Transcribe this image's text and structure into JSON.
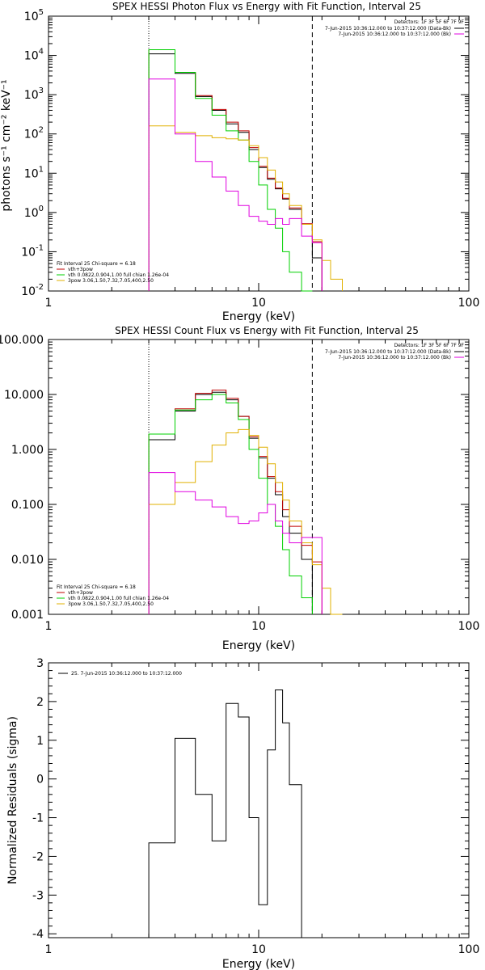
{
  "colors": {
    "black": "#000000",
    "red": "#c00000",
    "green": "#00d000",
    "magenta": "#e000e0",
    "yellow": "#e0b000"
  },
  "chart_data": [
    {
      "type": "line",
      "title": "SPEX HESSI Photon Flux vs Energy with Fit Function, Interval 25",
      "xlabel": "Energy (keV)",
      "ylabel": "photons s⁻¹ cm⁻² keV⁻¹",
      "xscale": "log",
      "yscale": "log",
      "xlim": [
        1,
        100
      ],
      "ylim": [
        0.01,
        100000
      ],
      "xticks": [
        {
          "v": 1,
          "label": "1"
        },
        {
          "v": 10,
          "label": "10"
        },
        {
          "v": 100,
          "label": "100"
        }
      ],
      "yticks": [
        {
          "v": 0.01,
          "base": "10",
          "exp": "-2"
        },
        {
          "v": 0.1,
          "base": "10",
          "exp": "-1"
        },
        {
          "v": 1,
          "base": "10",
          "exp": "0"
        },
        {
          "v": 10,
          "base": "10",
          "exp": "1"
        },
        {
          "v": 100,
          "base": "10",
          "exp": "2"
        },
        {
          "v": 1000,
          "base": "10",
          "exp": "3"
        },
        {
          "v": 10000,
          "base": "10",
          "exp": "4"
        },
        {
          "v": 100000,
          "base": "10",
          "exp": "5"
        }
      ],
      "vlines": [
        {
          "x": 3,
          "style": "dotted"
        },
        {
          "x": 18,
          "style": "dashed"
        }
      ],
      "legend_top": {
        "header": "Detectors: 1F 3F 5F 6F 7F 9F",
        "lines": [
          {
            "text": "7-Jun-2015 10:36:12.000 to 10:37:12.000 (Data-Bk)",
            "color": "#000000"
          },
          {
            "text": "7-Jun-2015 10:36:12.000 to 10:37:12.000 (Bk)",
            "color": "#e000e0"
          }
        ]
      },
      "legend_bottom": {
        "header": "Fit Interval 25   Chi-square = 6.18",
        "lines": [
          {
            "text": "vth+3pow",
            "color": "#c00000"
          },
          {
            "text": "vth 0.0822,0.904,1.00  full chian 1.26e-04",
            "color": "#00d000"
          },
          {
            "text": "3pow 3.06,1.50,7.32,7.05,400,2.50",
            "color": "#e0b000"
          }
        ]
      },
      "edges": [
        3,
        4,
        5,
        6,
        7,
        8,
        9,
        10,
        11,
        12,
        13,
        14,
        16,
        18,
        20,
        22,
        25
      ],
      "series": [
        {
          "name": "Data-Bk",
          "color": "#000000",
          "values": [
            11000,
            3500,
            900,
            400,
            180,
            110,
            40,
            14,
            7,
            4,
            2.2,
            1.2,
            0.5,
            0.07,
            null,
            null
          ]
        },
        {
          "name": "vth+3pow",
          "color": "#c00000",
          "values": [
            14000,
            3700,
            950,
            420,
            200,
            120,
            45,
            15,
            7.5,
            4.2,
            2.3,
            1.3,
            0.52,
            0.18,
            null,
            null
          ]
        },
        {
          "name": "vth",
          "color": "#00d000",
          "values": [
            14000,
            3700,
            800,
            300,
            120,
            70,
            20,
            5,
            1.2,
            0.4,
            0.1,
            0.03,
            0.01,
            null,
            null,
            null
          ]
        },
        {
          "name": "3pow",
          "color": "#e0b000",
          "values": [
            160,
            110,
            90,
            80,
            75,
            70,
            50,
            25,
            12,
            6,
            3,
            1.5,
            0.5,
            0.2,
            0.06,
            0.02
          ]
        },
        {
          "name": "Bk",
          "color": "#e000e0",
          "values": [
            2500,
            100,
            20,
            8,
            3.5,
            1.5,
            0.8,
            0.6,
            0.5,
            0.7,
            0.5,
            0.7,
            0.25,
            0.17,
            null,
            null
          ]
        }
      ]
    },
    {
      "type": "line",
      "title": "SPEX HESSI Count Flux vs Energy with Fit Function, Interval 25",
      "xlabel": "Energy (keV)",
      "ylabel": "",
      "xscale": "log",
      "yscale": "log",
      "xlim": [
        1,
        100
      ],
      "ylim": [
        0.001,
        100
      ],
      "xticks": [
        {
          "v": 1,
          "label": "1"
        },
        {
          "v": 10,
          "label": "10"
        },
        {
          "v": 100,
          "label": "100"
        }
      ],
      "yticks": [
        {
          "v": 0.001,
          "label": "0.001"
        },
        {
          "v": 0.01,
          "label": "0.010"
        },
        {
          "v": 0.1,
          "label": "0.100"
        },
        {
          "v": 1,
          "label": "1.000"
        },
        {
          "v": 10,
          "label": "10.000"
        },
        {
          "v": 100,
          "label": "100.000"
        }
      ],
      "vlines": [
        {
          "x": 3,
          "style": "dotted"
        },
        {
          "x": 18,
          "style": "dashed"
        }
      ],
      "legend_top": {
        "header": "Detectors: 1F 3F 5F 6F 7F 9F",
        "lines": [
          {
            "text": "7-Jun-2015 10:36:12.000 to 10:37:12.000 (Data-Bk)",
            "color": "#000000"
          },
          {
            "text": "7-Jun-2015 10:36:12.000 to 10:37:12.000 (Bk)",
            "color": "#e000e0"
          }
        ]
      },
      "legend_bottom": {
        "header": "Fit Interval 25   Chi-square = 6.18",
        "lines": [
          {
            "text": "vth+3pow",
            "color": "#c00000"
          },
          {
            "text": "vth 0.0822,0.904,1.00  full chian 1.26e-04",
            "color": "#00d000"
          },
          {
            "text": "3pow 3.06,1.50,7.32,7.05,400,2.50",
            "color": "#e0b000"
          }
        ]
      },
      "edges": [
        3,
        4,
        5,
        6,
        7,
        8,
        9,
        10,
        11,
        12,
        13,
        14,
        16,
        18,
        20,
        22,
        25
      ],
      "series": [
        {
          "name": "Data-Bk",
          "color": "#000000",
          "values": [
            1.5,
            5,
            10,
            11,
            8,
            4,
            1.6,
            0.7,
            0.3,
            0.15,
            0.06,
            0.03,
            0.01,
            0.001,
            null,
            null
          ]
        },
        {
          "name": "vth+3pow",
          "color": "#c00000",
          "values": [
            1.9,
            5.5,
            10.5,
            12,
            8.5,
            4,
            1.7,
            0.75,
            0.32,
            0.17,
            0.08,
            0.04,
            0.018,
            0.009,
            null,
            null
          ]
        },
        {
          "name": "vth",
          "color": "#00d000",
          "values": [
            1.9,
            5.2,
            8,
            10,
            7,
            3.5,
            1,
            0.3,
            0.1,
            0.04,
            0.015,
            0.005,
            0.002,
            null,
            null,
            null
          ]
        },
        {
          "name": "3pow",
          "color": "#e0b000",
          "values": [
            0.1,
            0.25,
            0.6,
            1.2,
            2,
            2.3,
            1.8,
            1.1,
            0.55,
            0.25,
            0.12,
            0.05,
            0.02,
            0.008,
            0.003,
            0.001
          ]
        },
        {
          "name": "Bk",
          "color": "#e000e0",
          "values": [
            0.38,
            0.17,
            0.12,
            0.09,
            0.06,
            0.045,
            0.05,
            0.07,
            0.1,
            0.05,
            0.03,
            0.02,
            0.025,
            0.025,
            null,
            null
          ]
        }
      ]
    },
    {
      "type": "line",
      "title": "",
      "xlabel": "Energy (keV)",
      "ylabel": "Normalized Residuals (sigma)",
      "xscale": "log",
      "yscale": "linear",
      "xlim": [
        1,
        100
      ],
      "ylim": [
        -4.1,
        3
      ],
      "xticks": [
        {
          "v": 1,
          "label": "1"
        },
        {
          "v": 10,
          "label": "10"
        },
        {
          "v": 100,
          "label": "100"
        }
      ],
      "yticks": [
        {
          "v": -4,
          "label": "-4"
        },
        {
          "v": -3,
          "label": "-3"
        },
        {
          "v": -2,
          "label": "-2"
        },
        {
          "v": -1,
          "label": "-1"
        },
        {
          "v": 0,
          "label": "0"
        },
        {
          "v": 1,
          "label": "1"
        },
        {
          "v": 2,
          "label": "2"
        },
        {
          "v": 3,
          "label": "3"
        }
      ],
      "legend_top": {
        "header": "",
        "lines": [
          {
            "text": "25.  7-Jun-2015 10:36:12.000 to 10:37:12.000",
            "color": "#000000"
          }
        ]
      },
      "edges": [
        3,
        4,
        5,
        6,
        7,
        8,
        9,
        10,
        11,
        12,
        13,
        14,
        16,
        18
      ],
      "series": [
        {
          "name": "25.  7-Jun-2015 10:36:12.000 to 10:37:12.000",
          "color": "#000000",
          "values": [
            -1.65,
            1.05,
            -0.4,
            -1.6,
            1.95,
            1.6,
            -1.0,
            -3.25,
            0.75,
            2.3,
            1.45,
            -0.15,
            -4.1
          ]
        }
      ]
    }
  ]
}
